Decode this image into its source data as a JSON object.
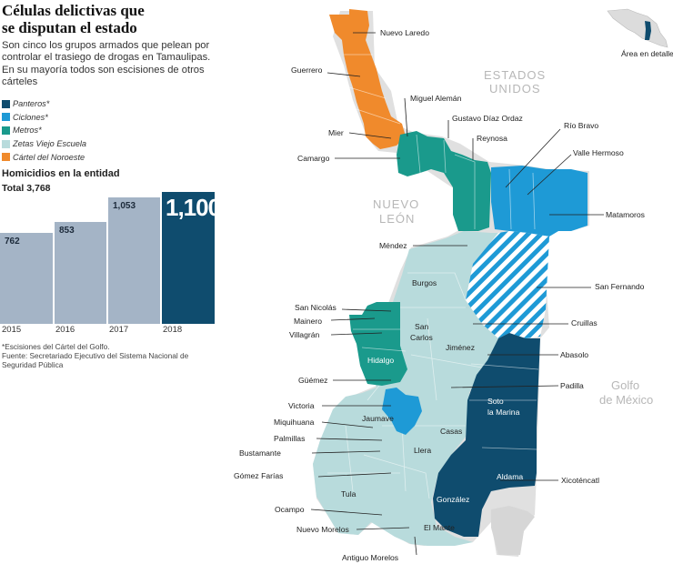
{
  "title_line1": "Células delictivas que",
  "title_line2": "se disputan el estado",
  "subtitle": "Son cinco los grupos armados que pelean por controlar el trasiego de drogas en Tamaulipas. En su mayoría todos son escisiones de otros cárteles",
  "legend": [
    {
      "label": "Panteros*",
      "color": "#0f4c6e"
    },
    {
      "label": "Ciclones*",
      "color": "#1e9ad6"
    },
    {
      "label": "Metros*",
      "color": "#1a9a8c"
    },
    {
      "label": "Zetas Viejo Escuela",
      "color": "#b8dbdc"
    },
    {
      "label": "Cártel del Noroeste",
      "color": "#f08a2c"
    }
  ],
  "homicides": {
    "title": "Homicidios en la entidad",
    "total": "Total 3,768",
    "bars": [
      {
        "year": "2015",
        "value": 762,
        "label": "762"
      },
      {
        "year": "2016",
        "value": 853,
        "label": "853"
      },
      {
        "year": "2017",
        "value": 1053,
        "label": "1,053"
      },
      {
        "year": "2018",
        "value": 1100,
        "label": "1,100"
      }
    ]
  },
  "footnote_1": "*Escisiones del Cártel del Golfo.",
  "footnote_2": "Fuente: Secretariado Ejecutivo del Sistema Nacional de Seguridad Pública",
  "inset_label": "Área en detalle",
  "regions": {
    "usa_1": "ESTADOS",
    "usa_2": "UNIDOS",
    "nl_1": "NUEVO",
    "nl_2": "LEÓN",
    "gulf_1": "Golfo",
    "gulf_2": "de México"
  },
  "municipalities": {
    "nuevo_laredo": "Nuevo Laredo",
    "guerrero": "Guerrero",
    "miguel_aleman": "Miguel Alemán",
    "gustavo_diaz_ordaz": "Gustavo Díaz Ordaz",
    "mier": "Mier",
    "reynosa": "Reynosa",
    "rio_bravo": "Río Bravo",
    "camargo": "Camargo",
    "valle_hermoso": "Valle Hermoso",
    "matamoros": "Matamoros",
    "mendez": "Méndez",
    "burgos": "Burgos",
    "san_fernando": "San Fernando",
    "san_nicolas": "San Nicolás",
    "mainero": "Mainero",
    "san_carlos_1": "San",
    "san_carlos_2": "Carlos",
    "cruillas": "Cruillas",
    "villagran": "Villagrán",
    "jimenez": "Jiménez",
    "abasolo": "Abasolo",
    "hidalgo": "Hidalgo",
    "guemez": "Güémez",
    "padilla": "Padilla",
    "soto_1": "Soto",
    "soto_2": "la Marina",
    "victoria": "Victoria",
    "jaumave": "Jaumave",
    "miquihuana": "Miquihuana",
    "casas": "Casas",
    "palmillas": "Palmillas",
    "llera": "Llera",
    "bustamante": "Bustamante",
    "aldama": "Aldama",
    "gomez_farias": "Gómez Farías",
    "xicotencatl": "Xicoténcatl",
    "tula": "Tula",
    "gonzalez": "González",
    "ocampo": "Ocampo",
    "nuevo_morelos": "Nuevo Morelos",
    "el_mante": "El Mante",
    "antiguo_morelos": "Antiguo Morelos"
  }
}
